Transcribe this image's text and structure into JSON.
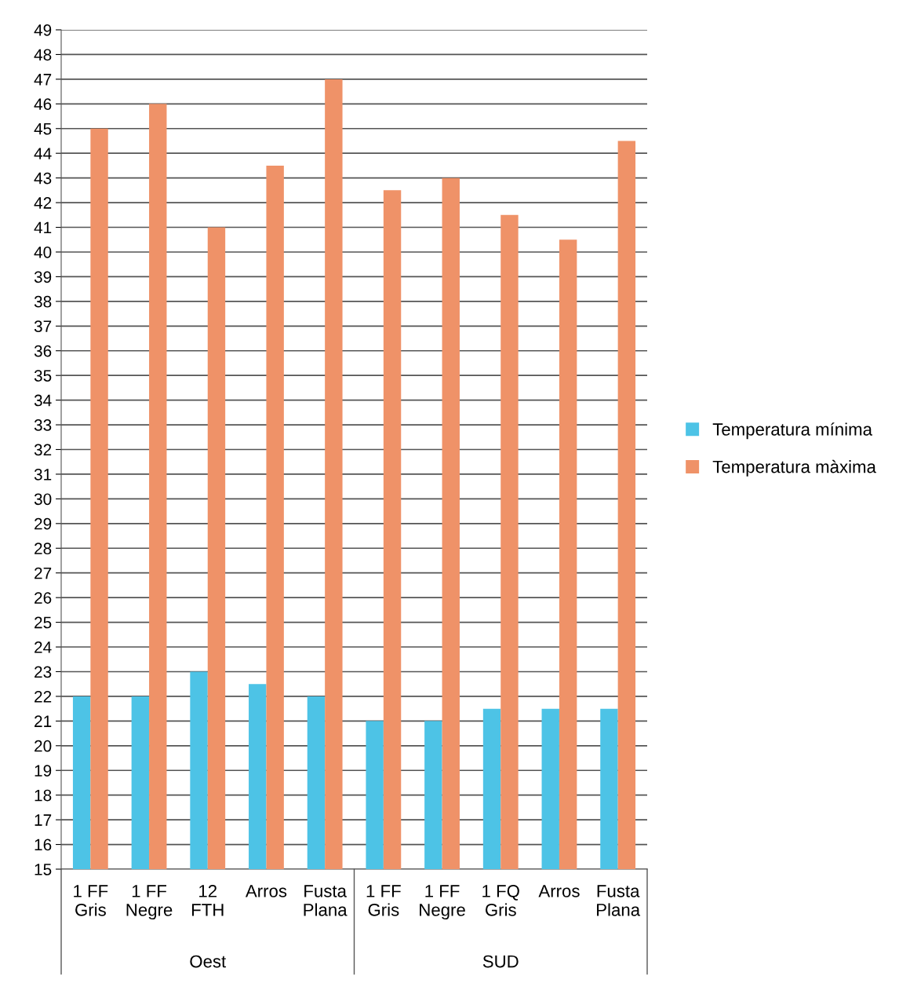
{
  "chart_data": {
    "type": "bar",
    "categories": [
      "1 FF\nGris",
      "1 FF\nNegre",
      "12\nFTH",
      "Arros",
      "Fusta\nPlana",
      "1 FF\nGris",
      "1 FF\nNegre",
      "1 FQ\nGris",
      "Arros",
      "Fusta\nPlana"
    ],
    "series": [
      {
        "name": "Temperatura mínima",
        "color": "#4dc3e6",
        "values": [
          22,
          22,
          23,
          22.5,
          22,
          21,
          21,
          21.5,
          21.5,
          21.5
        ]
      },
      {
        "name": "Temperatura màxima",
        "color": "#ef9268",
        "values": [
          45,
          46,
          41,
          43.5,
          47,
          42.5,
          43,
          41.5,
          40.5,
          44.5
        ]
      }
    ],
    "annotations": [
      "Oest",
      "SUD"
    ],
    "ylim": [
      15,
      49
    ],
    "yticks": [
      15,
      16,
      17,
      18,
      19,
      20,
      21,
      22,
      23,
      24,
      25,
      26,
      27,
      28,
      29,
      30,
      31,
      32,
      33,
      34,
      35,
      36,
      37,
      38,
      39,
      40,
      41,
      42,
      43,
      44,
      45,
      46,
      47,
      48,
      49
    ],
    "grid": "y",
    "legend": "right"
  }
}
